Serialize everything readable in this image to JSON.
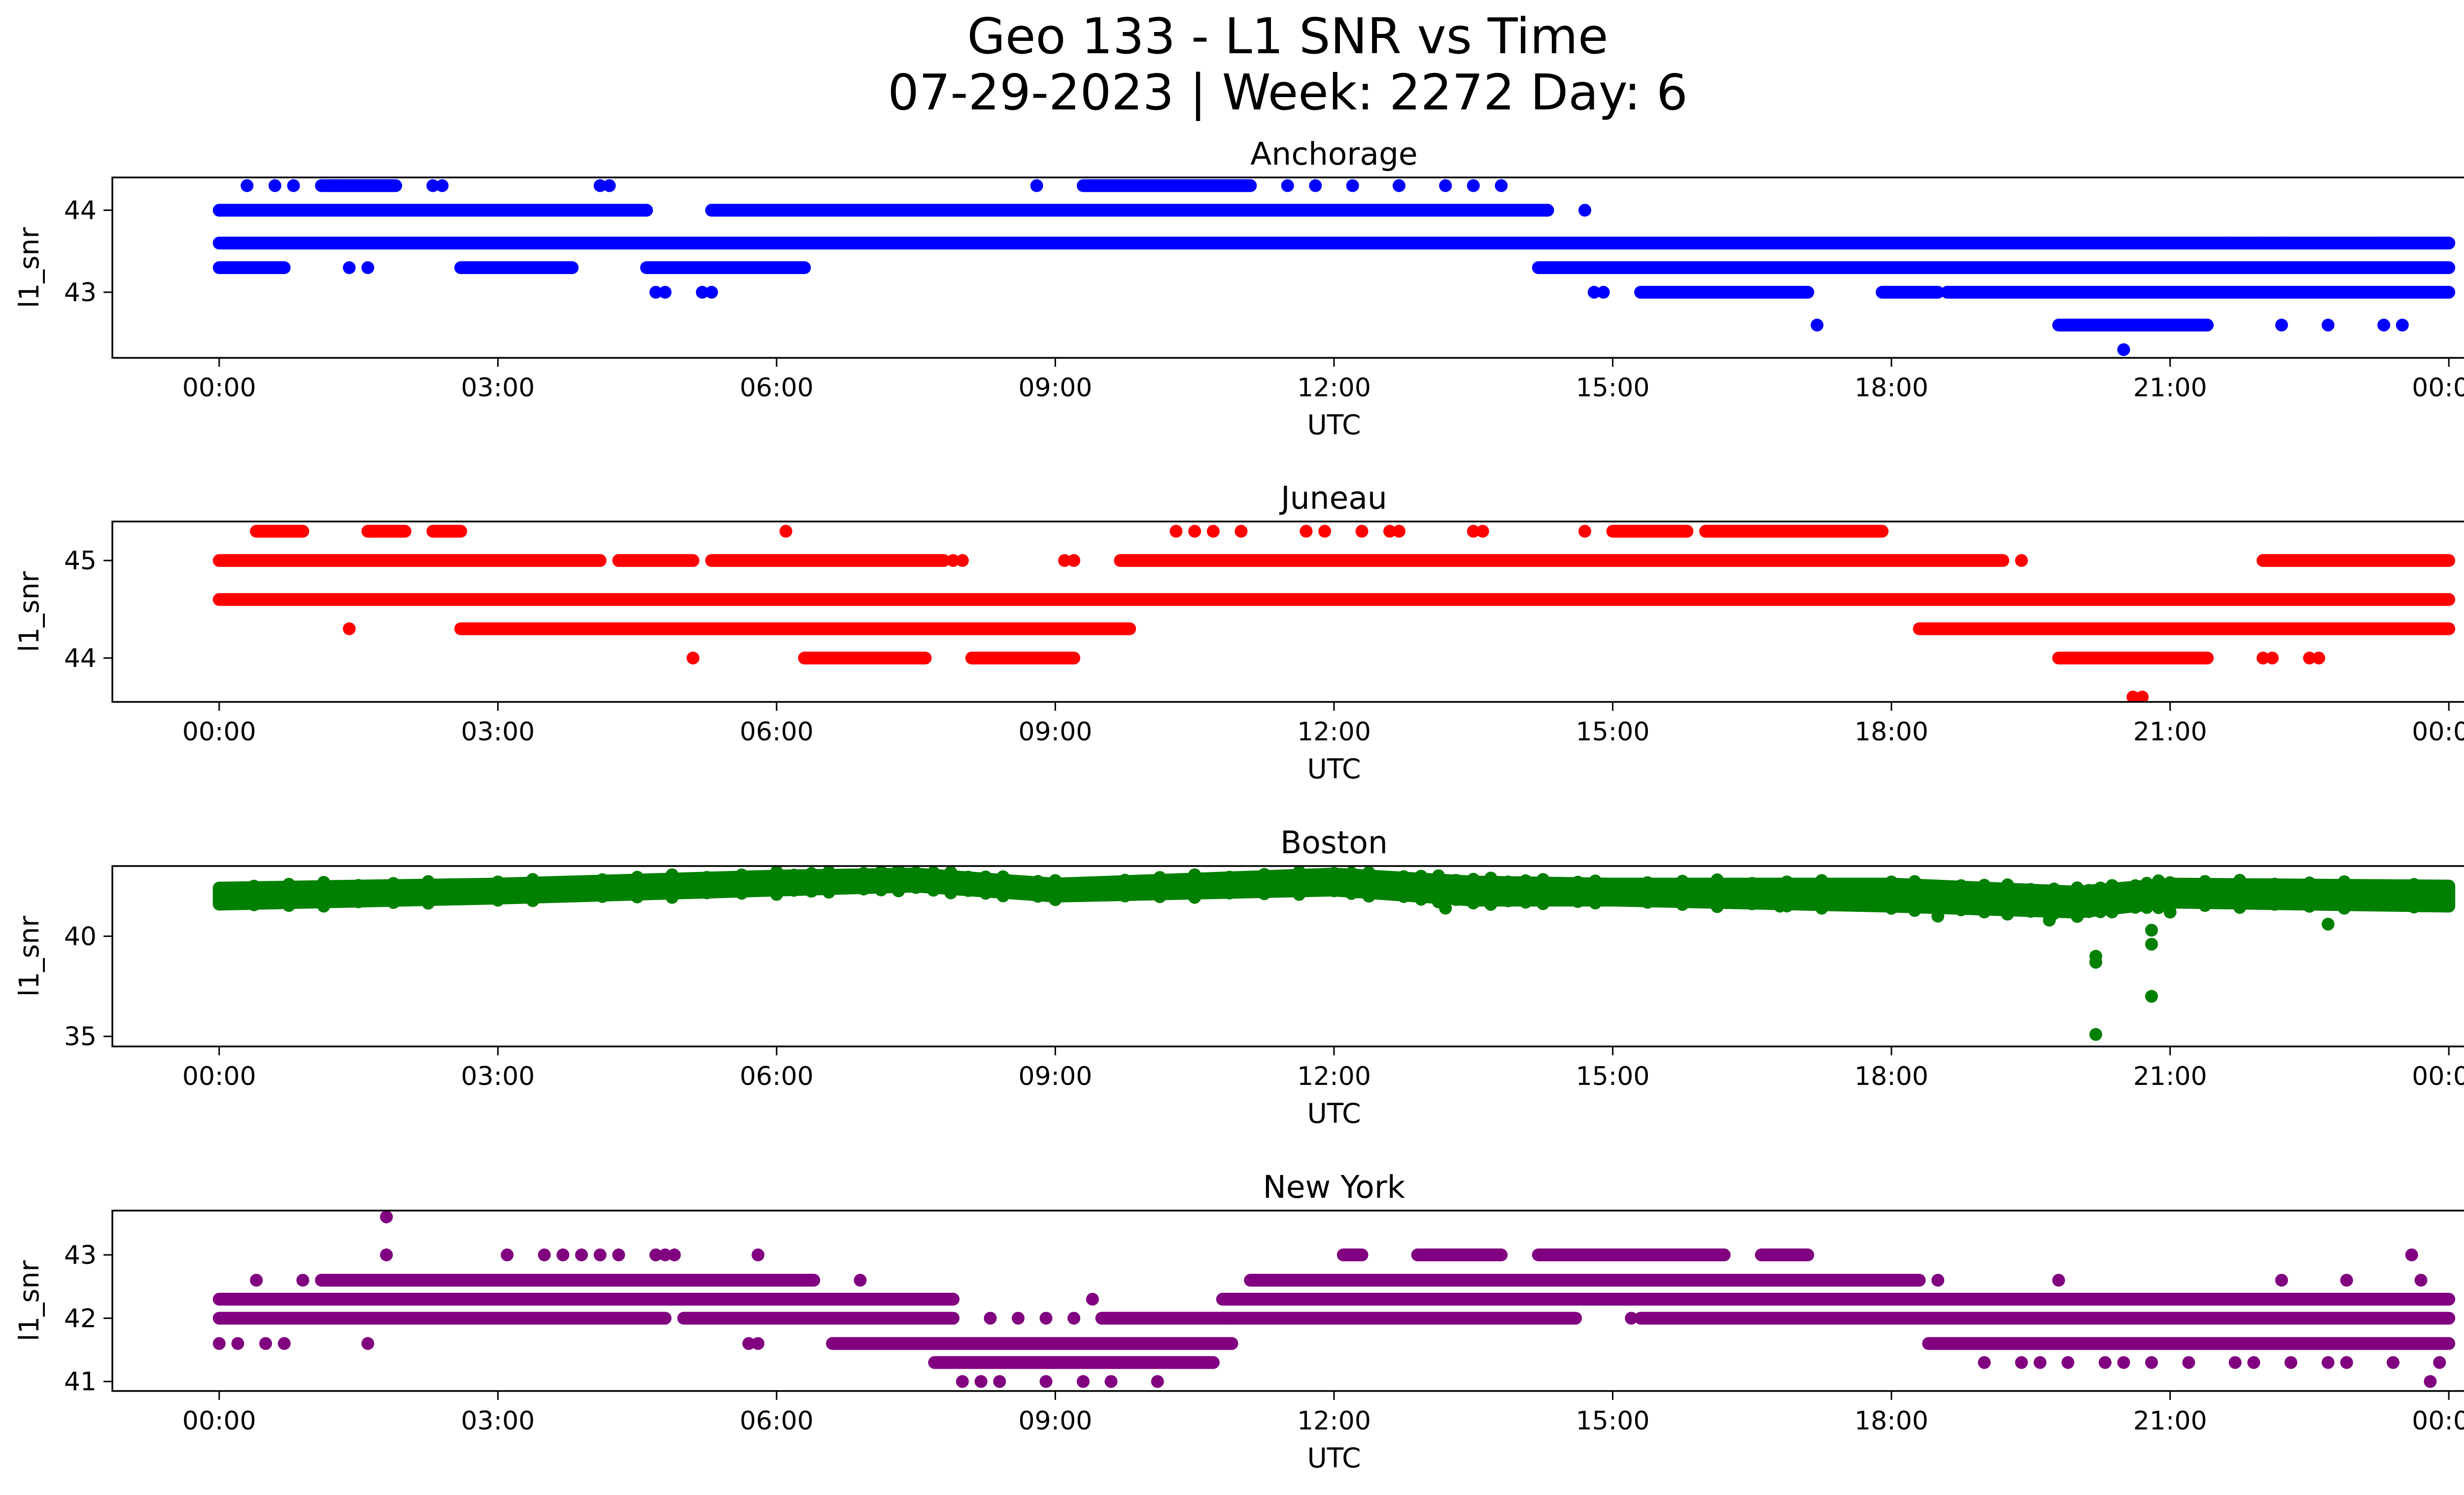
{
  "figure": {
    "title_line1": "Geo 133 - L1 SNR vs Time",
    "title_line2": "07-29-2023 | Week: 2272 Day: 6"
  },
  "chart_data": [
    {
      "type": "scatter",
      "title": "Anchorage",
      "xlabel": "UTC",
      "ylabel": "l1_snr",
      "color": "#0000ff",
      "x_unit": "hours since 00:00 UTC",
      "xticks": [
        "00:00",
        "03:00",
        "06:00",
        "09:00",
        "12:00",
        "15:00",
        "18:00",
        "21:00",
        "00:00"
      ],
      "xlim": [
        -1.15,
        25.15
      ],
      "ylim": [
        42.2,
        44.4
      ],
      "yticks": [
        43,
        44
      ],
      "series": [
        {
          "levels": [
            {
              "y": 43.6,
              "segments": [
                [
                  0,
                  24
                ]
              ]
            },
            {
              "y": 44.0,
              "segments": [
                [
                  0,
                  4.6
                ],
                [
                  5.3,
                  14.3
                ]
              ]
            },
            {
              "y": 43.3,
              "segments": [
                [
                  0,
                  0.7
                ],
                [
                  2.6,
                  3.8
                ],
                [
                  4.6,
                  6.3
                ],
                [
                  14.2,
                  24
                ]
              ]
            },
            {
              "y": 43.0,
              "segments": [
                [
                  15.3,
                  17.1
                ],
                [
                  17.9,
                  18.5
                ],
                [
                  18.6,
                  24
                ]
              ]
            },
            {
              "y": 44.3,
              "segments": [
                [
                  1.1,
                  1.9
                ],
                [
                  9.3,
                  11.1
                ]
              ]
            },
            {
              "y": 42.6,
              "segments": [
                [
                  19.8,
                  21.4
                ]
              ]
            }
          ],
          "points": [
            [
              0.3,
              44.3
            ],
            [
              0.6,
              44.3
            ],
            [
              0.8,
              44.3
            ],
            [
              1.3,
              44.3
            ],
            [
              2.3,
              44.3
            ],
            [
              2.4,
              44.3
            ],
            [
              4.1,
              44.3
            ],
            [
              4.2,
              44.3
            ],
            [
              8.8,
              44.3
            ],
            [
              11.5,
              44.3
            ],
            [
              11.8,
              44.3
            ],
            [
              12.2,
              44.3
            ],
            [
              12.7,
              44.3
            ],
            [
              13.2,
              44.3
            ],
            [
              13.5,
              44.3
            ],
            [
              13.8,
              44.3
            ],
            [
              14.7,
              44.0
            ],
            [
              1.4,
              43.3
            ],
            [
              1.6,
              43.3
            ],
            [
              4.7,
              43.0
            ],
            [
              4.8,
              43.0
            ],
            [
              5.2,
              43.0
            ],
            [
              5.3,
              43.0
            ],
            [
              14.8,
              43.0
            ],
            [
              14.9,
              43.0
            ],
            [
              17.2,
              42.6
            ],
            [
              20.5,
              42.3
            ],
            [
              22.2,
              42.6
            ],
            [
              22.7,
              42.6
            ],
            [
              23.3,
              42.6
            ],
            [
              23.5,
              42.6
            ],
            [
              21.6,
              43.6
            ],
            [
              22.0,
              43.6
            ],
            [
              22.2,
              43.6
            ],
            [
              23.3,
              43.6
            ],
            [
              23.4,
              43.6
            ]
          ]
        }
      ]
    },
    {
      "type": "scatter",
      "title": "Juneau",
      "xlabel": "UTC",
      "ylabel": "l1_snr",
      "color": "#ff0000",
      "x_unit": "hours since 00:00 UTC",
      "xticks": [
        "00:00",
        "03:00",
        "06:00",
        "09:00",
        "12:00",
        "15:00",
        "18:00",
        "21:00",
        "00:00"
      ],
      "xlim": [
        -1.15,
        25.15
      ],
      "ylim": [
        43.55,
        45.4
      ],
      "yticks": [
        44,
        45
      ],
      "series": [
        {
          "levels": [
            {
              "y": 44.6,
              "segments": [
                [
                  0,
                  24
                ]
              ]
            },
            {
              "y": 45.0,
              "segments": [
                [
                  0,
                  4.1
                ],
                [
                  4.3,
                  5.1
                ],
                [
                  5.3,
                  7.8
                ],
                [
                  9.7,
                  19.2
                ],
                [
                  22.0,
                  24
                ]
              ]
            },
            {
              "y": 44.3,
              "segments": [
                [
                  2.6,
                  9.8
                ],
                [
                  18.3,
                  24
                ]
              ]
            },
            {
              "y": 44.0,
              "segments": [
                [
                  6.3,
                  7.6
                ],
                [
                  8.1,
                  9.2
                ],
                [
                  19.8,
                  21.4
                ]
              ]
            },
            {
              "y": 45.3,
              "segments": [
                [
                  0.4,
                  0.9
                ],
                [
                  1.6,
                  2.0
                ],
                [
                  2.3,
                  2.6
                ],
                [
                  15.0,
                  15.8
                ],
                [
                  16.0,
                  17.9
                ]
              ]
            }
          ],
          "points": [
            [
              1.4,
              44.3
            ],
            [
              5.1,
              44.0
            ],
            [
              6.1,
              45.3
            ],
            [
              10.3,
              45.3
            ],
            [
              10.5,
              45.3
            ],
            [
              10.7,
              45.3
            ],
            [
              11.0,
              45.3
            ],
            [
              11.7,
              45.3
            ],
            [
              11.9,
              45.3
            ],
            [
              12.3,
              45.3
            ],
            [
              12.6,
              45.3
            ],
            [
              12.7,
              45.3
            ],
            [
              13.5,
              45.3
            ],
            [
              13.6,
              45.3
            ],
            [
              14.7,
              45.3
            ],
            [
              7.9,
              45.0
            ],
            [
              8.0,
              45.0
            ],
            [
              9.1,
              45.0
            ],
            [
              9.2,
              45.0
            ],
            [
              19.4,
              45.0
            ],
            [
              21.0,
              44.0
            ],
            [
              22.0,
              44.0
            ],
            [
              22.1,
              44.0
            ],
            [
              22.5,
              44.0
            ],
            [
              22.6,
              44.0
            ],
            [
              20.6,
              43.6
            ],
            [
              20.7,
              43.6
            ]
          ]
        }
      ]
    },
    {
      "type": "scatter",
      "title": "Boston",
      "xlabel": "UTC",
      "ylabel": "l1_snr",
      "color": "#008000",
      "x_unit": "hours since 00:00 UTC",
      "xticks": [
        "00:00",
        "03:00",
        "06:00",
        "09:00",
        "12:00",
        "15:00",
        "18:00",
        "21:00",
        "00:00"
      ],
      "xlim": [
        -1.15,
        25.15
      ],
      "ylim": [
        34.5,
        43.5
      ],
      "yticks": [
        35,
        40
      ],
      "series": [
        {
          "band": [
            [
              0,
              41.6,
              42.4
            ],
            [
              3,
              41.9,
              42.6
            ],
            [
              6,
              42.3,
              43.0
            ],
            [
              7.5,
              42.5,
              43.1
            ],
            [
              9,
              42.0,
              42.6
            ],
            [
              12,
              42.3,
              43.1
            ],
            [
              13.5,
              41.8,
              42.7
            ],
            [
              15,
              41.8,
              42.6
            ],
            [
              18,
              41.5,
              42.6
            ],
            [
              20,
              41.2,
              42.2
            ],
            [
              21,
              41.7,
              42.6
            ],
            [
              24,
              41.5,
              42.5
            ]
          ],
          "points": [
            [
              20.2,
              39.0
            ],
            [
              20.2,
              38.7
            ],
            [
              20.2,
              35.1
            ],
            [
              20.8,
              40.3
            ],
            [
              20.8,
              39.6
            ],
            [
              20.8,
              37.0
            ],
            [
              19.7,
              40.8
            ],
            [
              22.7,
              40.6
            ],
            [
              18.5,
              41.0
            ],
            [
              21.0,
              41.2
            ],
            [
              13.2,
              41.4
            ],
            [
              16.8,
              41.5
            ]
          ]
        }
      ]
    },
    {
      "type": "scatter",
      "title": "New York",
      "xlabel": "UTC",
      "ylabel": "l1_snr",
      "color": "#800080",
      "x_unit": "hours since 00:00 UTC",
      "xticks": [
        "00:00",
        "03:00",
        "06:00",
        "09:00",
        "12:00",
        "15:00",
        "18:00",
        "21:00",
        "00:00"
      ],
      "xlim": [
        -1.15,
        25.15
      ],
      "ylim": [
        40.85,
        43.7
      ],
      "yticks": [
        41,
        42,
        43
      ],
      "series": [
        {
          "levels": [
            {
              "y": 42.3,
              "segments": [
                [
                  0,
                  7.9
                ],
                [
                  10.8,
                  24
                ]
              ]
            },
            {
              "y": 42.0,
              "segments": [
                [
                  0,
                  4.8
                ],
                [
                  5.0,
                  7.9
                ],
                [
                  9.5,
                  14.6
                ],
                [
                  15.3,
                  24
                ]
              ]
            },
            {
              "y": 42.6,
              "segments": [
                [
                  1.1,
                  6.4
                ],
                [
                  11.1,
                  18.3
                ]
              ]
            },
            {
              "y": 41.6,
              "segments": [
                [
                  6.6,
                  10.9
                ],
                [
                  18.4,
                  24
                ]
              ]
            },
            {
              "y": 41.3,
              "segments": [
                [
                  7.7,
                  10.7
                ]
              ]
            },
            {
              "y": 43.0,
              "segments": [
                [
                  12.1,
                  12.3
                ],
                [
                  12.9,
                  13.8
                ],
                [
                  14.2,
                  16.2
                ],
                [
                  16.6,
                  17.1
                ]
              ]
            }
          ],
          "points": [
            [
              0,
              41.6
            ],
            [
              0.2,
              41.6
            ],
            [
              0.5,
              41.6
            ],
            [
              0.7,
              41.6
            ],
            [
              1.6,
              41.6
            ],
            [
              5.7,
              41.6
            ],
            [
              5.8,
              41.6
            ],
            [
              0.4,
              42.6
            ],
            [
              0.9,
              42.6
            ],
            [
              6.9,
              42.6
            ],
            [
              1.8,
              43.6
            ],
            [
              1.8,
              43.0
            ],
            [
              3.1,
              43.0
            ],
            [
              3.5,
              43.0
            ],
            [
              3.7,
              43.0
            ],
            [
              3.9,
              43.0
            ],
            [
              4.1,
              43.0
            ],
            [
              4.3,
              43.0
            ],
            [
              4.7,
              43.0
            ],
            [
              4.8,
              43.0
            ],
            [
              4.9,
              43.0
            ],
            [
              5.8,
              43.0
            ],
            [
              8.0,
              41.0
            ],
            [
              8.2,
              41.0
            ],
            [
              8.4,
              41.0
            ],
            [
              8.9,
              41.0
            ],
            [
              9.3,
              41.0
            ],
            [
              9.6,
              41.0
            ],
            [
              10.1,
              41.0
            ],
            [
              8.3,
              42.0
            ],
            [
              8.6,
              42.0
            ],
            [
              8.9,
              42.0
            ],
            [
              9.2,
              42.0
            ],
            [
              9.4,
              42.3
            ],
            [
              10.9,
              42.0
            ],
            [
              15.2,
              42.0
            ],
            [
              18.5,
              42.6
            ],
            [
              19.8,
              42.6
            ],
            [
              22.2,
              42.6
            ],
            [
              22.9,
              42.6
            ],
            [
              23.6,
              43.0
            ],
            [
              23.7,
              42.6
            ],
            [
              19.0,
              41.3
            ],
            [
              19.4,
              41.3
            ],
            [
              19.6,
              41.3
            ],
            [
              19.9,
              41.3
            ],
            [
              20.3,
              41.3
            ],
            [
              20.5,
              41.3
            ],
            [
              20.8,
              41.3
            ],
            [
              21.2,
              41.3
            ],
            [
              21.7,
              41.3
            ],
            [
              21.9,
              41.3
            ],
            [
              22.3,
              41.3
            ],
            [
              22.7,
              41.3
            ],
            [
              22.9,
              41.3
            ],
            [
              23.4,
              41.3
            ],
            [
              23.8,
              41.0
            ],
            [
              23.9,
              41.3
            ]
          ]
        }
      ]
    }
  ]
}
